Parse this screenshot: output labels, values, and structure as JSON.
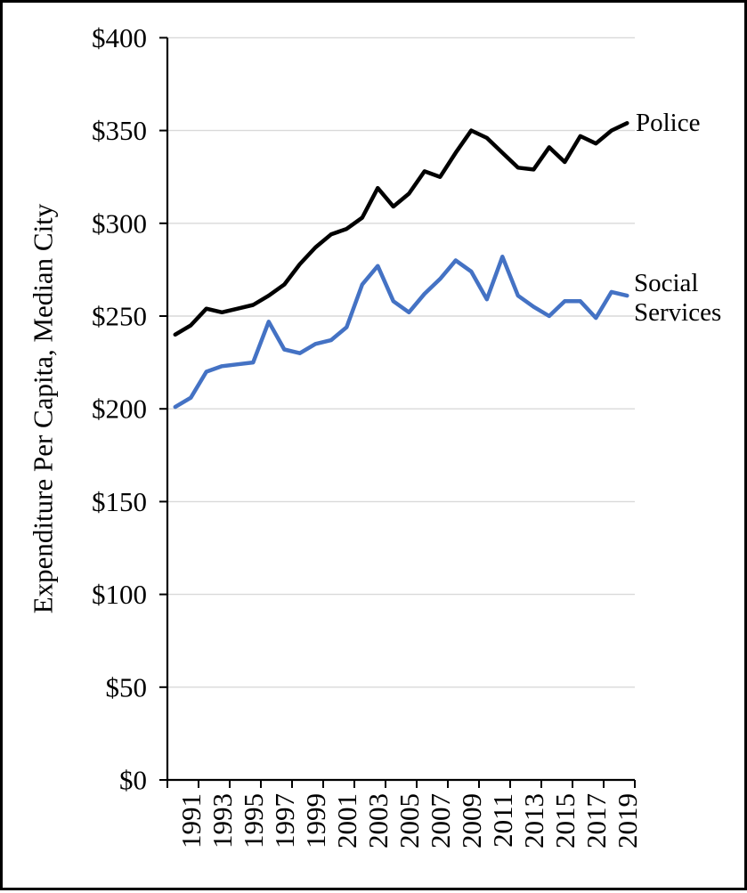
{
  "chart_data": {
    "type": "line",
    "title": "",
    "xlabel": "",
    "ylabel": "Expenditure Per Capita, Median City",
    "ylim": [
      0,
      400
    ],
    "grid": "horizontal",
    "legend": "labels-at-line-ends",
    "x": [
      1990,
      1991,
      1992,
      1993,
      1994,
      1995,
      1996,
      1997,
      1998,
      1999,
      2000,
      2001,
      2002,
      2003,
      2004,
      2005,
      2006,
      2007,
      2008,
      2009,
      2010,
      2011,
      2012,
      2013,
      2014,
      2015,
      2016,
      2017,
      2018,
      2019
    ],
    "x_tick_labels": [
      "1991",
      "1993",
      "1995",
      "1997",
      "1999",
      "2001",
      "2003",
      "2005",
      "2007",
      "2009",
      "2011",
      "2013",
      "2015",
      "2017",
      "2019"
    ],
    "y_tick_values": [
      0,
      50,
      100,
      150,
      200,
      250,
      300,
      350,
      400
    ],
    "y_tick_labels": [
      "$0",
      "$50",
      "$100",
      "$150",
      "$200",
      "$250",
      "$300",
      "$350",
      "$400"
    ],
    "series": [
      {
        "name": "Police",
        "label_lines": [
          "Police"
        ],
        "color": "#000000",
        "values": [
          240,
          245,
          254,
          252,
          254,
          256,
          261,
          267,
          278,
          287,
          294,
          297,
          303,
          319,
          309,
          316,
          328,
          325,
          338,
          350,
          346,
          338,
          330,
          329,
          341,
          333,
          347,
          343,
          350,
          354
        ]
      },
      {
        "name": "Social Services",
        "label_lines": [
          "Social",
          "Services"
        ],
        "color": "#4472C4",
        "values": [
          201,
          206,
          220,
          223,
          224,
          225,
          247,
          232,
          230,
          235,
          237,
          244,
          267,
          277,
          258,
          252,
          262,
          270,
          280,
          274,
          259,
          282,
          261,
          255,
          250,
          258,
          258,
          249,
          263,
          261
        ]
      }
    ]
  },
  "colors": {
    "background": "#FFFFFF",
    "frame_border": "#000000",
    "gridline": "#D9D9D9",
    "axis": "#000000"
  }
}
